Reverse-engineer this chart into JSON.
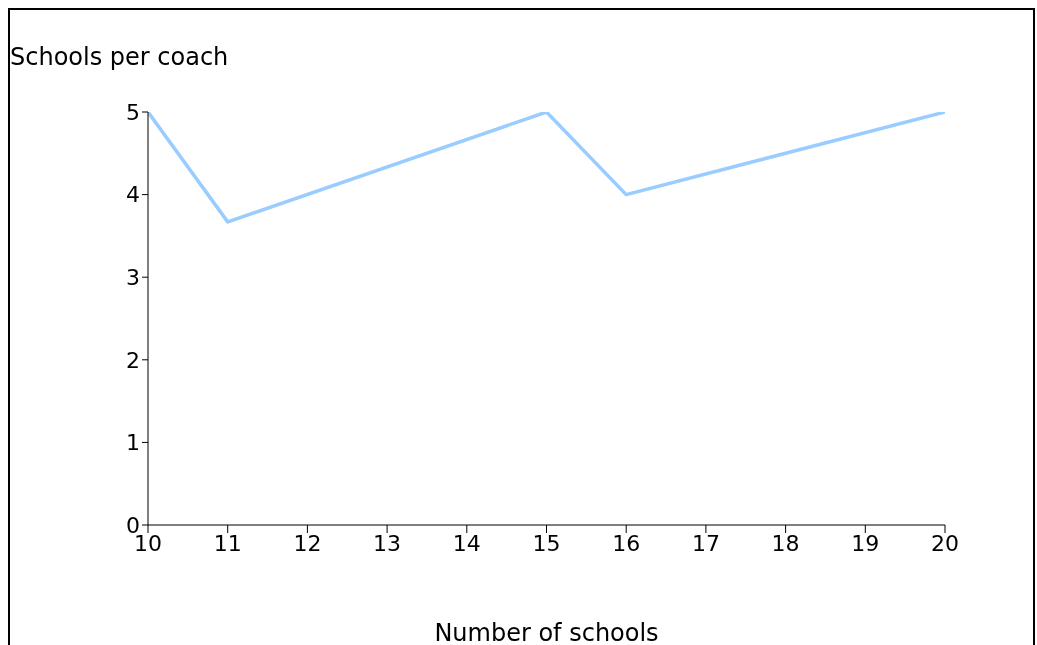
{
  "chart_data": {
    "type": "line",
    "xlabel": "Number of schools",
    "ylabel": "Schools per coach",
    "x": [
      10,
      11,
      15,
      16,
      20
    ],
    "series": [
      {
        "color": "#99ccff",
        "values": [
          5,
          3.67,
          5,
          4,
          5
        ]
      }
    ],
    "xlim": [
      10,
      20
    ],
    "xticks": [
      10,
      11,
      12,
      13,
      14,
      15,
      16,
      17,
      18,
      19,
      20
    ],
    "ylim": [
      0,
      5
    ],
    "yticks": [
      0,
      1,
      2,
      3,
      4,
      5
    ],
    "grid": false,
    "legend": false,
    "marker": "none",
    "line_style": "solid"
  }
}
